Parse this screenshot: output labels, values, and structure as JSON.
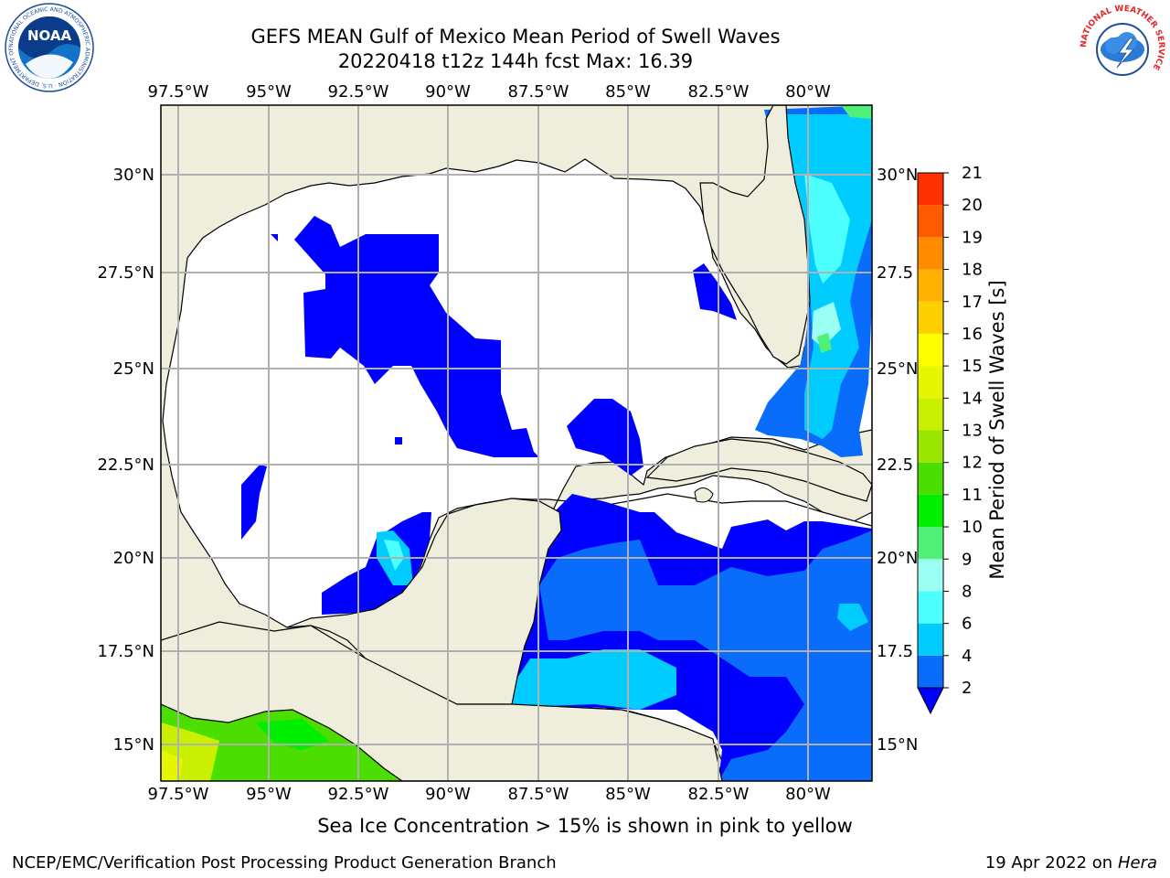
{
  "header": {
    "title_line1": "GEFS MEAN Gulf of Mexico Mean Period of Swell Waves",
    "title_line2": "20220418 t12z 144h fcst   Max: 16.39"
  },
  "logos": {
    "left": "noara-logo",
    "left_ring_text": "NATIONAL OCEANIC AND ATMOSPHERIC ADMINISTRATION · U.S. DEPARTMENT OF COMMERCE",
    "left_center_text": "NOAA",
    "right": "nws-logo",
    "right_ring_text": "NATIONAL WEATHER SERVICE"
  },
  "map": {
    "lon_labels": [
      "97.5°W",
      "95°W",
      "92.5°W",
      "90°W",
      "87.5°W",
      "85°W",
      "82.5°W",
      "80°W"
    ],
    "lat_labels_left": [
      "30°N",
      "27.5°N",
      "25°N",
      "22.5°N",
      "20°N",
      "17.5°N",
      "15°N"
    ],
    "lat_labels_right": [
      "30°N",
      "27.5",
      "25°N",
      "22.5",
      "20°N",
      "17.5",
      "15°N"
    ],
    "colors": {
      "land": "#efeedc",
      "ocean": "#ffffff",
      "grid": "#b0b0b0"
    }
  },
  "colorbar": {
    "label": "Mean Period of Swell Waves [s]",
    "ticks": [
      "2",
      "4",
      "6",
      "8",
      "9",
      "10",
      "11",
      "12",
      "13",
      "14",
      "15",
      "16",
      "17",
      "18",
      "19",
      "20",
      "21"
    ],
    "colors": [
      "#0a6cfa",
      "#00ccff",
      "#4dffff",
      "#9cfff4",
      "#50f078",
      "#00ee00",
      "#4bde00",
      "#9ae600",
      "#c8f000",
      "#e6f500",
      "#ffff00",
      "#ffd000",
      "#ffb000",
      "#ff8c00",
      "#ff5a00",
      "#ff3000",
      "#ff0000"
    ],
    "under_color": "#0000ff"
  },
  "footer": {
    "note": "Sea Ice Concentration > 15% is shown in pink to yellow",
    "credit": "NCEP/EMC/Verification Post Processing Product Generation Branch",
    "date": "19 Apr 2022 on ",
    "machine": "Hera"
  }
}
